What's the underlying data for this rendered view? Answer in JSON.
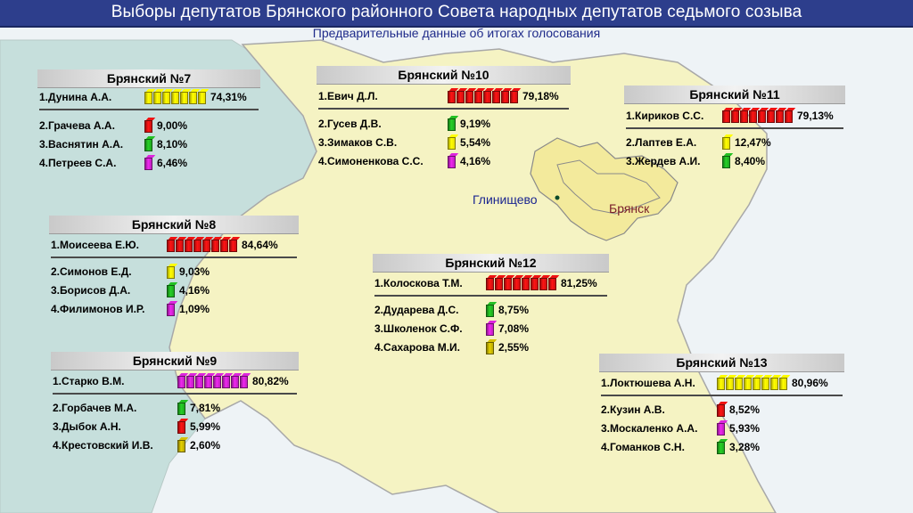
{
  "header": {
    "title": "Выборы депутатов Брянского районного Совета народных депутатов седьмого созыва",
    "subtitle": "Предварительные данные об итогах голосования"
  },
  "cities": {
    "glinishchevo": "Глинищево",
    "bryansk": "Брянск"
  },
  "colors": {
    "yellow": "#e8e000",
    "red": "#d01010",
    "green": "#1fa81f",
    "purple": "#c020c0",
    "olive": "#b8a800",
    "map_fill": "#f5f3c3",
    "map_border": "#bdbdbd",
    "sea": "#c5dedb",
    "bryansk_fill": "#f3ea9c"
  },
  "districts": [
    {
      "name": "Брянский №7",
      "candidates": [
        {
          "label": "1.Дунина А.А.",
          "percent": "74,31%",
          "value": 74.31,
          "color": "yellow"
        },
        {
          "label": "2.Грачева А.А.",
          "percent": "9,00%",
          "value": 9.0,
          "color": "red"
        },
        {
          "label": "3.Васнятин А.А.",
          "percent": "8,10%",
          "value": 8.1,
          "color": "green"
        },
        {
          "label": "4.Петреев С.А.",
          "percent": "6,46%",
          "value": 6.46,
          "color": "purple"
        }
      ]
    },
    {
      "name": "Брянский №10",
      "candidates": [
        {
          "label": "1.Евич Д.Л.",
          "percent": "79,18%",
          "value": 79.18,
          "color": "red"
        },
        {
          "label": "2.Гусев Д.В.",
          "percent": "9,19%",
          "value": 9.19,
          "color": "green"
        },
        {
          "label": "3.Зимаков С.В.",
          "percent": "5,54%",
          "value": 5.54,
          "color": "yellow"
        },
        {
          "label": "4.Симоненкова С.С.",
          "percent": "4,16%",
          "value": 4.16,
          "color": "purple"
        }
      ]
    },
    {
      "name": "Брянский №11",
      "candidates": [
        {
          "label": "1.Кириков С.С.",
          "percent": "79,13%",
          "value": 79.13,
          "color": "red"
        },
        {
          "label": "2.Лаптев Е.А.",
          "percent": "12,47%",
          "value": 12.47,
          "color": "yellow"
        },
        {
          "label": "3.Жердев А.И.",
          "percent": "8,40%",
          "value": 8.4,
          "color": "green"
        }
      ]
    },
    {
      "name": "Брянский №8",
      "candidates": [
        {
          "label": "1.Моисеева Е.Ю.",
          "percent": "84,64%",
          "value": 84.64,
          "color": "red"
        },
        {
          "label": "2.Симонов Е.Д.",
          "percent": "9,03%",
          "value": 9.03,
          "color": "yellow"
        },
        {
          "label": "3.Борисов Д.А.",
          "percent": "4,16%",
          "value": 4.16,
          "color": "green"
        },
        {
          "label": "4.Филимонов И.Р.",
          "percent": "1,09%",
          "value": 1.09,
          "color": "purple"
        }
      ]
    },
    {
      "name": "Брянский №12",
      "candidates": [
        {
          "label": "1.Колоскова Т.М.",
          "percent": "81,25%",
          "value": 81.25,
          "color": "red"
        },
        {
          "label": "2.Дударева Д.С.",
          "percent": "8,75%",
          "value": 8.75,
          "color": "green"
        },
        {
          "label": "3.Школенок С.Ф.",
          "percent": "7,08%",
          "value": 7.08,
          "color": "purple"
        },
        {
          "label": "4.Сахарова М.И.",
          "percent": "2,55%",
          "value": 2.55,
          "color": "olive"
        }
      ]
    },
    {
      "name": "Брянский №9",
      "candidates": [
        {
          "label": "1.Старко В.М.",
          "percent": "80,82%",
          "value": 80.82,
          "color": "purple"
        },
        {
          "label": "2.Горбачев М.А.",
          "percent": "7,81%",
          "value": 7.81,
          "color": "green"
        },
        {
          "label": "3.Дыбок А.Н.",
          "percent": "5,99%",
          "value": 5.99,
          "color": "red"
        },
        {
          "label": "4.Крестовский И.В.",
          "percent": "2,60%",
          "value": 2.6,
          "color": "olive"
        }
      ]
    },
    {
      "name": "Брянский №13",
      "candidates": [
        {
          "label": "1.Локтюшева А.Н.",
          "percent": "80,96%",
          "value": 80.96,
          "color": "yellow"
        },
        {
          "label": "2.Кузин А.В.",
          "percent": "8,52%",
          "value": 8.52,
          "color": "red"
        },
        {
          "label": "3.Москаленко А.А.",
          "percent": "5,93%",
          "value": 5.93,
          "color": "purple"
        },
        {
          "label": "4.Гоманков С.Н.",
          "percent": "3,28%",
          "value": 3.28,
          "color": "green"
        }
      ]
    }
  ]
}
